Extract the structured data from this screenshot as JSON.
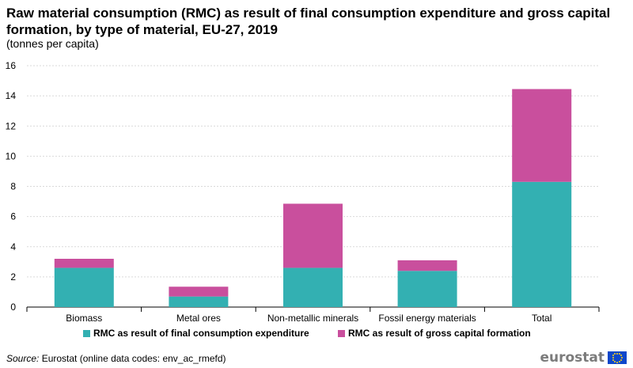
{
  "title": "Raw material consumption (RMC) as result of final consumption expenditure and gross capital formation, by type of material, EU-27, 2019",
  "subtitle": "(tonnes per capita)",
  "source_label": "Source:",
  "source_text": "Eurostat (online data codes: env_ac_rmefd)",
  "logo_text": "eurostat",
  "logo_icon": "eu-flag-icon",
  "colors": {
    "final": "#33b0b2",
    "capital": "#c94f9d",
    "grid": "#d9d9d9",
    "axis": "#000000"
  },
  "chart_data": {
    "type": "bar",
    "stacked": true,
    "categories": [
      "Biomass",
      "Metal ores",
      "Non-metallic minerals",
      "Fossil energy materials",
      "Total"
    ],
    "series": [
      {
        "name": "RMC as result of final consumption expenditure",
        "values": [
          2.6,
          0.7,
          2.6,
          2.4,
          8.3
        ]
      },
      {
        "name": "RMC as result of gross capital formation",
        "values": [
          0.6,
          0.65,
          4.25,
          0.7,
          6.15
        ]
      }
    ],
    "yticks": [
      0,
      2,
      4,
      6,
      8,
      10,
      12,
      14,
      16
    ],
    "ylim": [
      0,
      16
    ],
    "xlabel": "",
    "ylabel": "",
    "grid": true,
    "legend_position": "bottom"
  }
}
